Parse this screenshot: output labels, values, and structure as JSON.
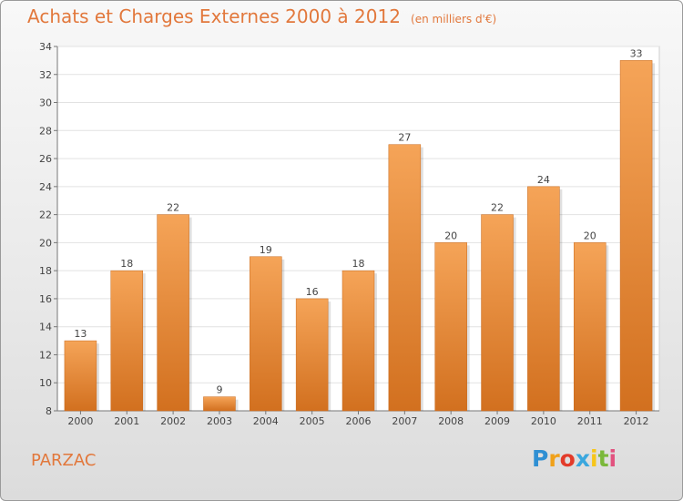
{
  "header": {
    "title": "Achats et Charges Externes 2000 à 2012",
    "unit": "(en milliers d'€)"
  },
  "footer": {
    "commune": "PARZAC",
    "logo_letters": [
      "P",
      "r",
      "o",
      "x",
      "i",
      "t",
      "i"
    ],
    "logo_colors": [
      "#2f8fd3",
      "#f0a11a",
      "#e33b2a",
      "#3aa7de",
      "#f7c51a",
      "#7ab83a",
      "#e2527f"
    ]
  },
  "colors": {
    "bar_light": "#f5a458",
    "bar_dark": "#d2701f",
    "accent": "#e2783c"
  },
  "chart_data": {
    "type": "bar",
    "title": "Achats et Charges Externes 2000 à 2012",
    "subtitle": "(en milliers d'€)",
    "xlabel": "",
    "ylabel": "",
    "categories": [
      "2000",
      "2001",
      "2002",
      "2003",
      "2004",
      "2005",
      "2006",
      "2007",
      "2008",
      "2009",
      "2010",
      "2011",
      "2012"
    ],
    "values": [
      13,
      18,
      22,
      9,
      19,
      16,
      18,
      27,
      20,
      22,
      24,
      20,
      33
    ],
    "value_labels": [
      "13",
      "18",
      "22",
      "9",
      "19",
      "16",
      "18",
      "27",
      "20",
      "22",
      "24",
      "20",
      "33"
    ],
    "ylim": [
      8,
      34
    ],
    "yticks": [
      8,
      10,
      12,
      14,
      16,
      18,
      20,
      22,
      24,
      26,
      28,
      30,
      32,
      34
    ],
    "grid": "horizontal",
    "legend": "none"
  }
}
